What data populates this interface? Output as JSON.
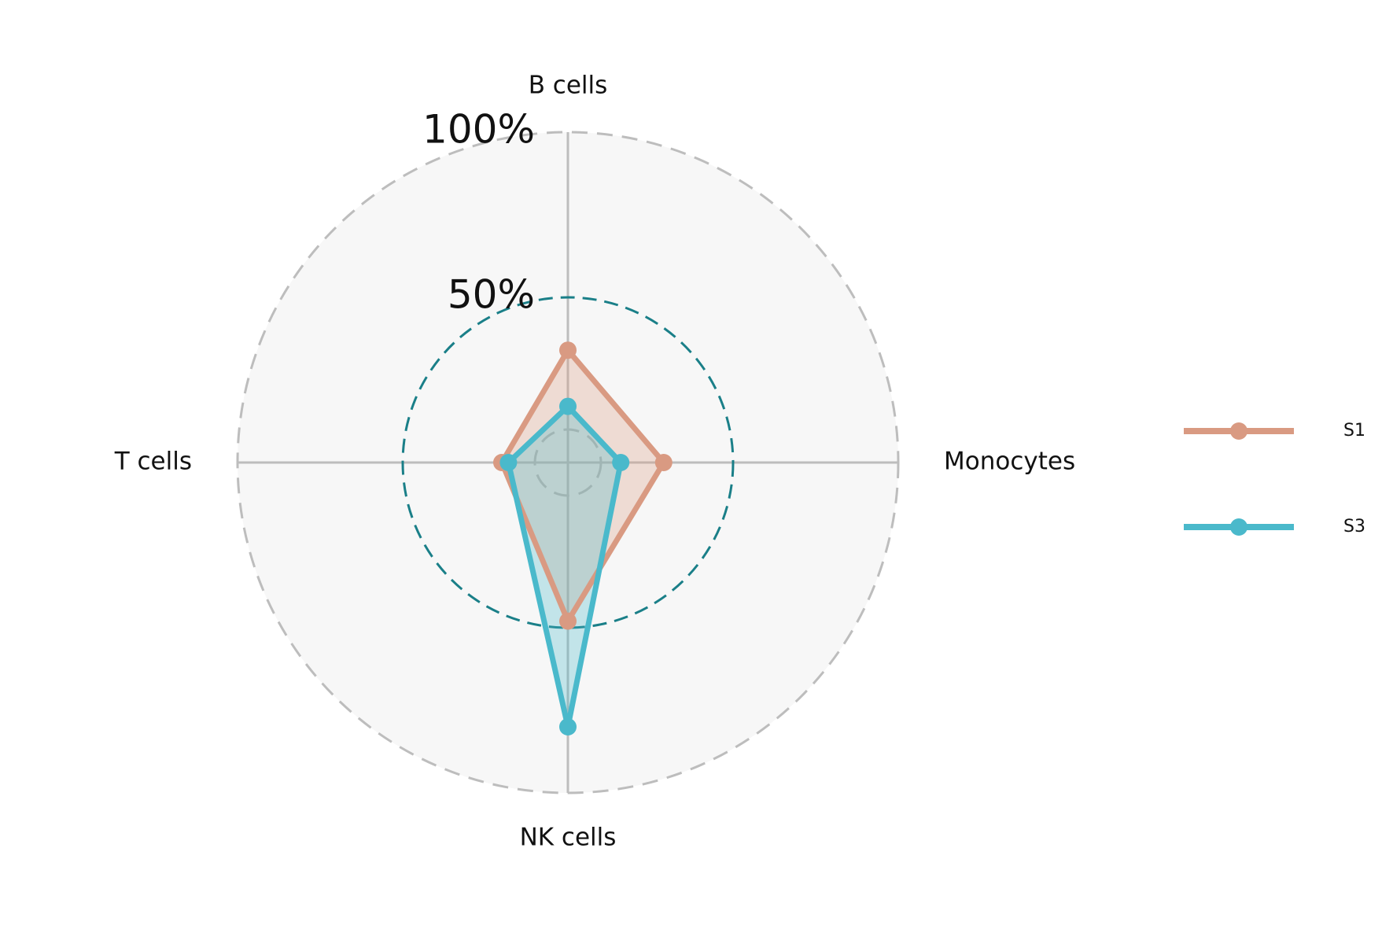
{
  "chart_data": {
    "type": "radar",
    "axes": [
      "B cells",
      "Monocytes",
      "NK cells",
      "T cells"
    ],
    "rmax": 100,
    "ring_labels": [
      {
        "value": 100,
        "label": "100%"
      },
      {
        "value": 50,
        "label": "50%"
      }
    ],
    "rings": [
      {
        "value": 10,
        "style": "grey-dashed"
      },
      {
        "value": 50,
        "style": "teal-dashed"
      },
      {
        "value": 100,
        "style": "grey-dashed"
      }
    ],
    "series": [
      {
        "name": "S1",
        "values": [
          34,
          29,
          48,
          20
        ],
        "color": "#d99a82"
      },
      {
        "name": "S3",
        "values": [
          17,
          16,
          80,
          18
        ],
        "color": "#4ab9cb"
      }
    ],
    "legend_position": "right",
    "colors": {
      "background_disc": "#f7f7f7",
      "grid": "#bdbdbd",
      "reference_ring": "#1a7f88"
    }
  }
}
